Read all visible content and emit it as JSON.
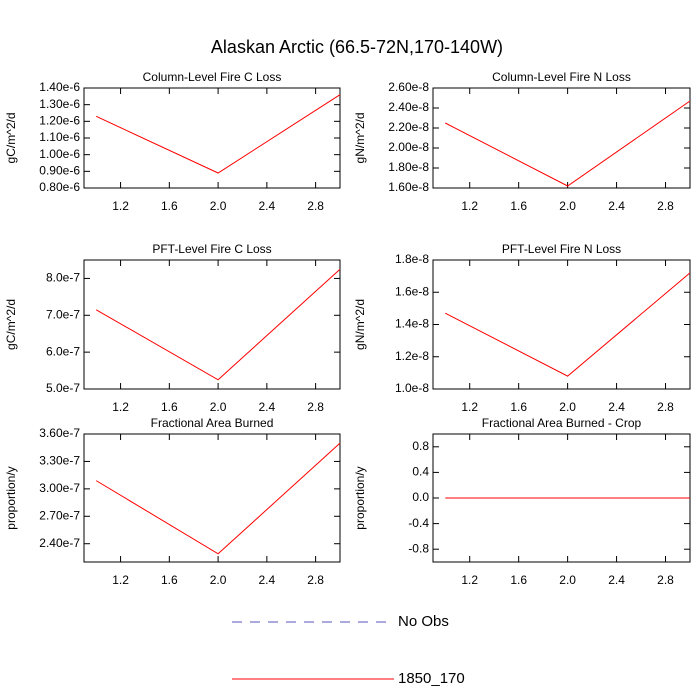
{
  "title": "Alaskan Arctic (66.5-72N,170-140W)",
  "legend": [
    {
      "name": "No Obs",
      "color": "#5555bb",
      "dashed": true
    }
  ],
  "chart_data": [
    {
      "type": "line",
      "title": "Column-Level Fire C Loss",
      "y_label": "gC/m^2/d",
      "x": [
        1,
        2,
        3
      ],
      "series": [
        {
          "name": "1850_170",
          "color": "#ff0000",
          "values": [
            1.23e-06,
            8.9e-07,
            1.36e-06
          ]
        }
      ],
      "xlim": [
        0.9,
        3.0
      ],
      "xticks": [
        1.2,
        1.6,
        {
          "value": 2,
          "label": "2.0"
        },
        2.4,
        2.8
      ],
      "ylim": [
        8e-07,
        1.4e-06
      ],
      "yticks": [
        {
          "value": 8e-07,
          "label": "0.80e-6"
        },
        {
          "value": 9e-07,
          "label": "0.90e-6"
        },
        {
          "value": 1e-06,
          "label": "1.00e-6"
        },
        {
          "value": 1.1e-06,
          "label": "1.10e-6"
        },
        {
          "value": 1.2e-06,
          "label": "1.20e-6"
        },
        {
          "value": 1.3e-06,
          "label": "1.30e-6"
        },
        {
          "value": 1.4e-06,
          "label": "1.40e-6"
        }
      ]
    },
    {
      "type": "line",
      "title": "Column-Level Fire N Loss",
      "y_label": "gN/m^2/d",
      "x": [
        1,
        2,
        3
      ],
      "series": [
        {
          "name": "1850_170",
          "color": "#ff0000",
          "values": [
            2.25e-08,
            1.62e-08,
            2.47e-08
          ]
        }
      ],
      "xlim": [
        0.9,
        3.0
      ],
      "xticks": [
        1.2,
        1.6,
        {
          "value": 2,
          "label": "2.0"
        },
        2.4,
        2.8
      ],
      "ylim": [
        1.6e-08,
        2.6e-08
      ],
      "yticks": [
        {
          "value": 1.6e-08,
          "label": "1.60e-8"
        },
        {
          "value": 1.8e-08,
          "label": "1.80e-8"
        },
        {
          "value": 2e-08,
          "label": "2.00e-8"
        },
        {
          "value": 2.2e-08,
          "label": "2.20e-8"
        },
        {
          "value": 2.4e-08,
          "label": "2.40e-8"
        },
        {
          "value": 2.6e-08,
          "label": "2.60e-8"
        }
      ]
    },
    {
      "type": "line",
      "title": "PFT-Level Fire C Loss",
      "y_label": "gC/m^2/d",
      "x": [
        1,
        2,
        3
      ],
      "series": [
        {
          "name": "1850_170",
          "color": "#ff0000",
          "values": [
            7.15e-07,
            5.25e-07,
            8.25e-07
          ]
        }
      ],
      "xlim": [
        0.9,
        3.0
      ],
      "xticks": [
        1.2,
        1.6,
        {
          "value": 2,
          "label": "2.0"
        },
        2.4,
        2.8
      ],
      "ylim": [
        5e-07,
        8.5e-07
      ],
      "yticks": [
        {
          "value": 5e-07,
          "label": "5.0e-7"
        },
        {
          "value": 6e-07,
          "label": "6.0e-7"
        },
        {
          "value": 7e-07,
          "label": "7.0e-7"
        },
        {
          "value": 8e-07,
          "label": "8.0e-7"
        }
      ]
    },
    {
      "type": "line",
      "title": "PFT-Level Fire N Loss",
      "y_label": "gN/m^2/d",
      "x": [
        1,
        2,
        3
      ],
      "series": [
        {
          "name": "1850_170",
          "color": "#ff0000",
          "values": [
            1.47e-08,
            1.08e-08,
            1.72e-08
          ]
        }
      ],
      "xlim": [
        0.9,
        3.0
      ],
      "xticks": [
        1.2,
        1.6,
        {
          "value": 2,
          "label": "2.0"
        },
        2.4,
        2.8
      ],
      "ylim": [
        1e-08,
        1.8e-08
      ],
      "yticks": [
        {
          "value": 1e-08,
          "label": "1.0e-8"
        },
        {
          "value": 1.2e-08,
          "label": "1.2e-8"
        },
        {
          "value": 1.4e-08,
          "label": "1.4e-8"
        },
        {
          "value": 1.6e-08,
          "label": "1.6e-8"
        },
        {
          "value": 1.8e-08,
          "label": "1.8e-8"
        }
      ]
    },
    {
      "type": "line",
      "title": "Fractional Area Burned",
      "y_label": "proportion/y",
      "x": [
        1,
        2,
        3
      ],
      "series": [
        {
          "name": "1850_170",
          "color": "#ff0000",
          "values": [
            3.09e-07,
            2.29e-07,
            3.5e-07
          ]
        }
      ],
      "xlim": [
        0.9,
        3.0
      ],
      "xticks": [
        1.2,
        1.6,
        {
          "value": 2,
          "label": "2.0"
        },
        2.4,
        2.8
      ],
      "ylim": [
        2.2e-07,
        3.6e-07
      ],
      "yticks": [
        {
          "value": 2.4e-07,
          "label": "2.40e-7"
        },
        {
          "value": 2.7e-07,
          "label": "2.70e-7"
        },
        {
          "value": 3e-07,
          "label": "3.00e-7"
        },
        {
          "value": 3.3e-07,
          "label": "3.30e-7"
        },
        {
          "value": 3.6e-07,
          "label": "3.60e-7"
        }
      ]
    },
    {
      "type": "line",
      "title": "Fractional Area Burned - Crop",
      "y_label": "proportion/y",
      "x": [
        1,
        2,
        3
      ],
      "series": [
        {
          "name": "1850_170",
          "color": "#ff0000",
          "values": [
            0,
            0,
            0
          ]
        }
      ],
      "xlim": [
        0.9,
        3.0
      ],
      "xticks": [
        1.2,
        1.6,
        {
          "value": 2,
          "label": "2.0"
        },
        2.4,
        2.8
      ],
      "ylim": [
        -1,
        1
      ],
      "yticks": [
        -0.8,
        -0.4,
        {
          "value": 0,
          "label": "0.0"
        },
        0.4,
        0.8
      ]
    }
  ]
}
